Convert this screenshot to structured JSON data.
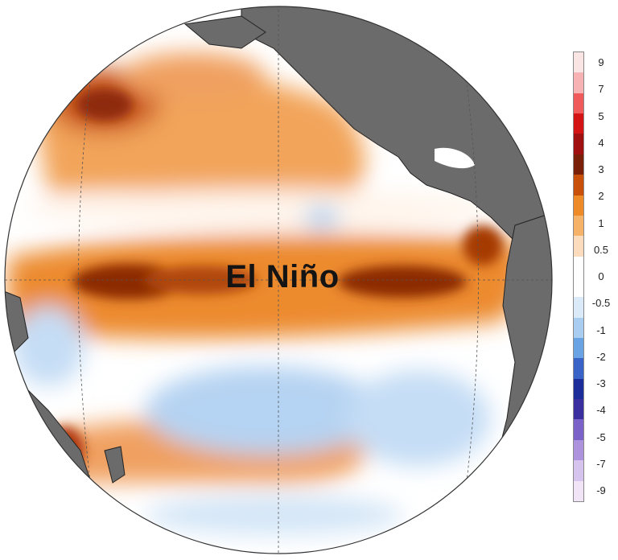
{
  "map": {
    "label": "El Niño",
    "projection": "orthographic",
    "ocean": "Pacific Ocean",
    "land_color": "#6b6b6b",
    "graticule": "dashed"
  },
  "legend": {
    "labels": [
      "9",
      "7",
      "5",
      "4",
      "3",
      "2",
      "1",
      "0.5",
      "0",
      "-0.5",
      "-1",
      "-2",
      "-3",
      "-4",
      "-5",
      "-7",
      "-9"
    ],
    "colors": [
      "#fbe4e4",
      "#f7b3b3",
      "#f05a5a",
      "#d41414",
      "#a01010",
      "#7a1f08",
      "#c8500a",
      "#ee8a28",
      "#f7b26a",
      "#fcdcbc",
      "#ffffff",
      "#ffffff",
      "#dbeaf8",
      "#a9cdf0",
      "#6aa3e3",
      "#3a63c8",
      "#1d2e9a",
      "#3b2fa0",
      "#7b62c9",
      "#ad92de",
      "#d6c4ee",
      "#f0e4f6"
    ]
  },
  "anomaly_patterns": {
    "warm_color": "#ee8a28",
    "strong_warm_color": "#a63a06",
    "cool_color": "#a9cdf0"
  }
}
